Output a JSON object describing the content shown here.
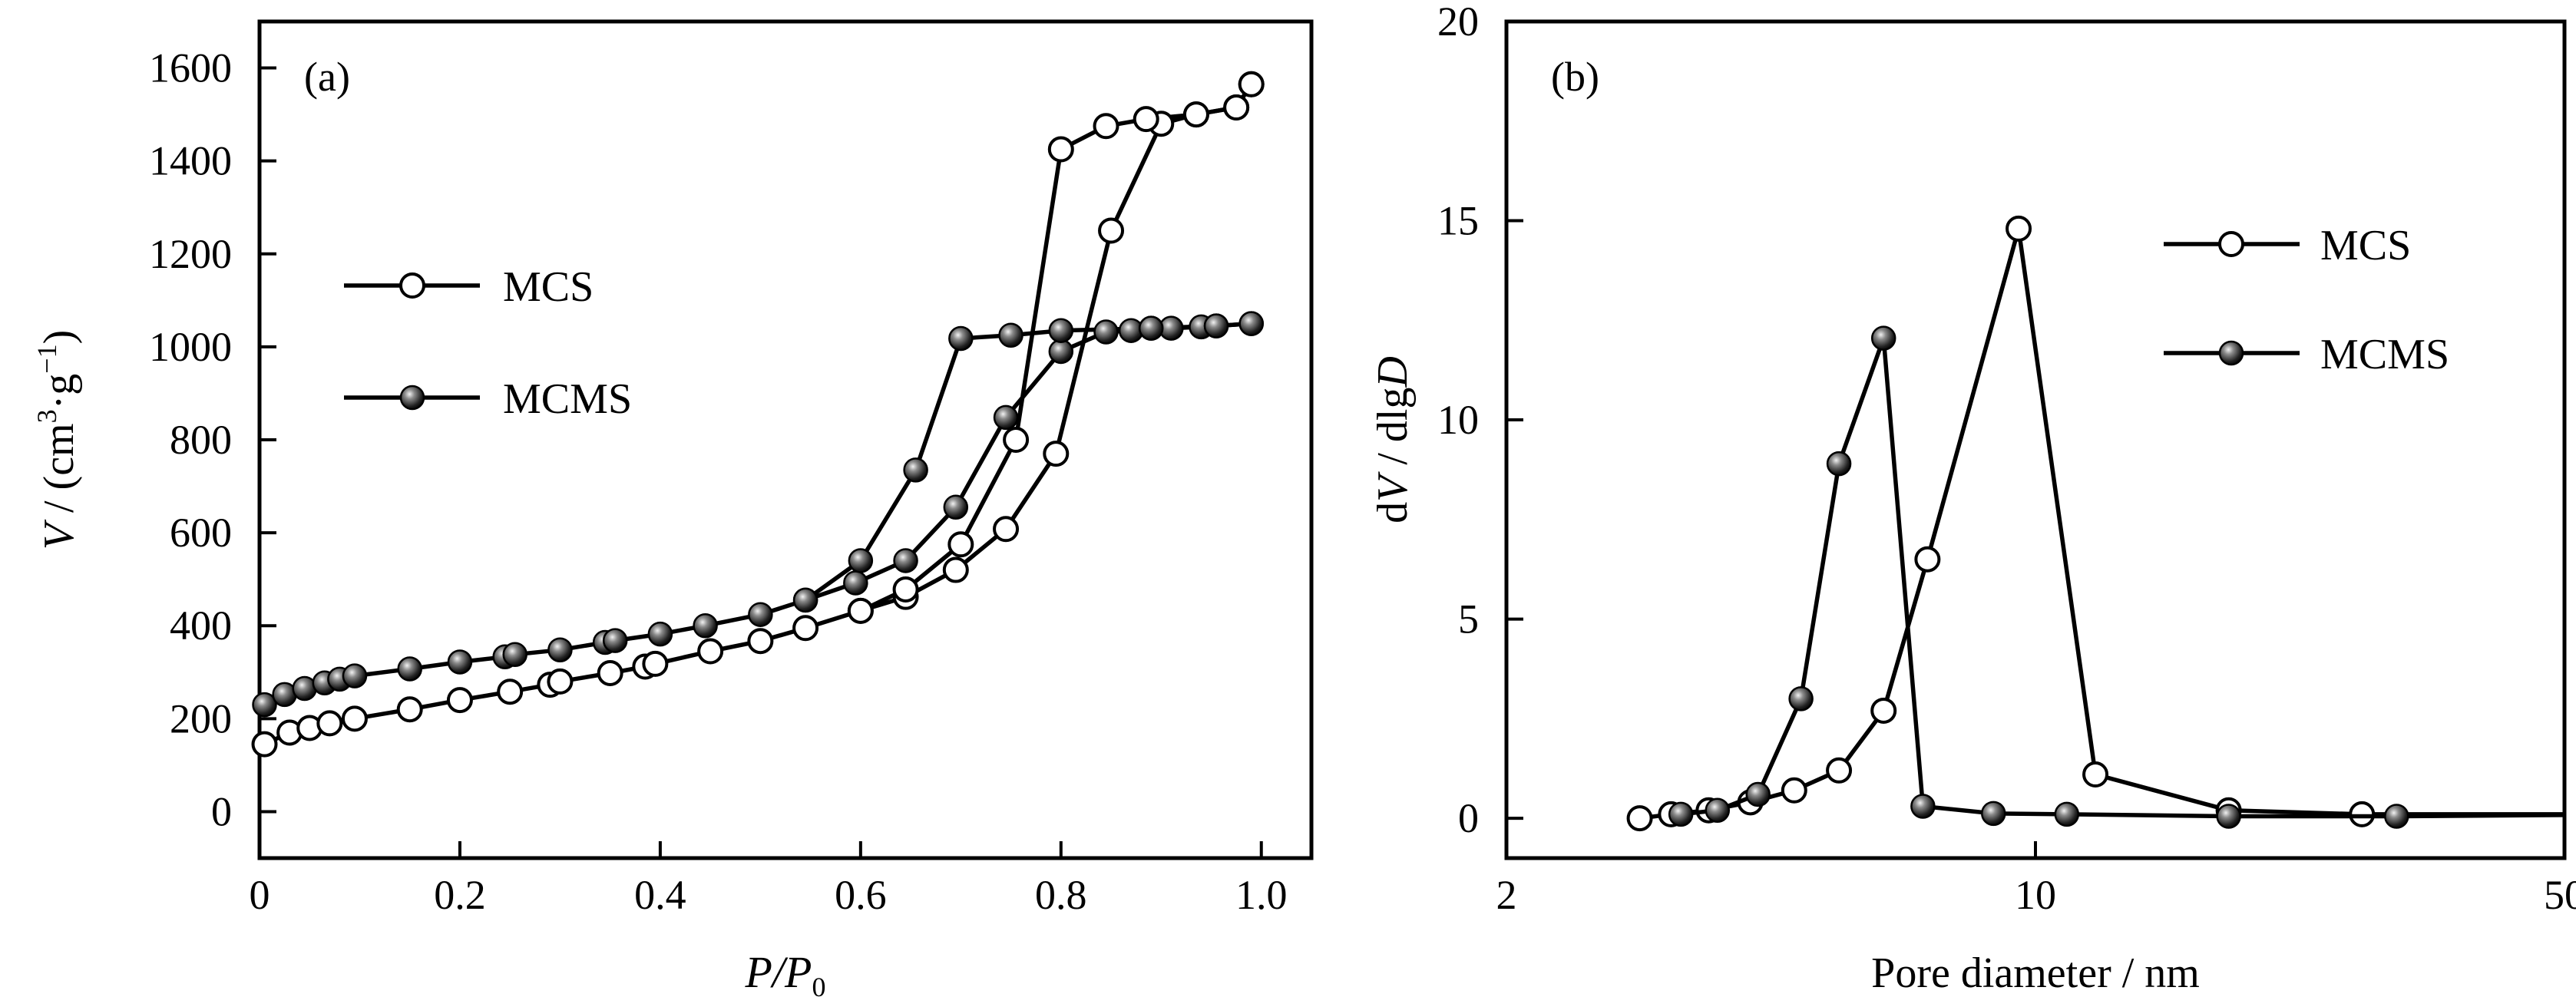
{
  "chart_data": [
    {
      "panel_label": "(a)",
      "type": "line",
      "xlabel_main": "P/P",
      "xlabel_sub": "0",
      "ylabel": "V / (cm³·g⁻¹)",
      "ylabel_parts": {
        "v": "V",
        "pre": " / (cm",
        "sup3": "3",
        "mid": "·g",
        "supm1": "−1",
        "post": ")"
      },
      "xlim": [
        0,
        1.05
      ],
      "ylim": [
        -100,
        1700
      ],
      "x_ticks": [
        "0",
        "0.2",
        "0.4",
        "0.6",
        "0.8",
        "1.0"
      ],
      "x_tick_values": [
        0,
        0.2,
        0.4,
        0.6,
        0.8,
        1.0
      ],
      "y_ticks": [
        "0",
        "200",
        "400",
        "600",
        "800",
        "1000",
        "1200",
        "1400",
        "1600"
      ],
      "y_tick_values": [
        0,
        200,
        400,
        600,
        800,
        1000,
        1200,
        1400,
        1600
      ],
      "legend": [
        {
          "name": "MCS",
          "marker": "open-circle"
        },
        {
          "name": "MCMS",
          "marker": "filled-sphere"
        }
      ],
      "legend_position": "middle-left",
      "series": [
        {
          "name": "MCS",
          "marker": "open-circle",
          "adsorption": [
            [
              0.005,
              145
            ],
            [
              0.03,
              170
            ],
            [
              0.05,
              180
            ],
            [
              0.07,
              190
            ],
            [
              0.095,
              200
            ],
            [
              0.15,
              220
            ],
            [
              0.2,
              240
            ],
            [
              0.25,
              258
            ],
            [
              0.29,
              273
            ],
            [
              0.3,
              280
            ],
            [
              0.35,
              298
            ],
            [
              0.385,
              312
            ],
            [
              0.395,
              318
            ],
            [
              0.45,
              345
            ],
            [
              0.5,
              367
            ],
            [
              0.545,
              395
            ],
            [
              0.6,
              432
            ],
            [
              0.645,
              462
            ],
            [
              0.695,
              520
            ],
            [
              0.745,
              608
            ],
            [
              0.795,
              770
            ],
            [
              0.85,
              1250
            ],
            [
              0.9,
              1480
            ],
            [
              0.935,
              1500
            ],
            [
              0.975,
              1515
            ],
            [
              0.99,
              1565
            ]
          ],
          "desorption": [
            [
              0.99,
              1565
            ],
            [
              0.975,
              1515
            ],
            [
              0.935,
              1500
            ],
            [
              0.885,
              1490
            ],
            [
              0.845,
              1475
            ],
            [
              0.8,
              1425
            ],
            [
              0.755,
              800
            ],
            [
              0.7,
              575
            ],
            [
              0.645,
              478
            ],
            [
              0.6,
              432
            ]
          ]
        },
        {
          "name": "MCMS",
          "marker": "filled-sphere",
          "adsorption": [
            [
              0.005,
              230
            ],
            [
              0.025,
              252
            ],
            [
              0.045,
              265
            ],
            [
              0.065,
              277
            ],
            [
              0.08,
              285
            ],
            [
              0.095,
              292
            ],
            [
              0.15,
              307
            ],
            [
              0.2,
              322
            ],
            [
              0.245,
              333
            ],
            [
              0.255,
              338
            ],
            [
              0.3,
              348
            ],
            [
              0.345,
              364
            ],
            [
              0.355,
              368
            ],
            [
              0.4,
              382
            ],
            [
              0.445,
              400
            ],
            [
              0.5,
              424
            ],
            [
              0.545,
              455
            ],
            [
              0.595,
              492
            ],
            [
              0.645,
              540
            ],
            [
              0.695,
              655
            ],
            [
              0.745,
              848
            ],
            [
              0.8,
              990
            ],
            [
              0.845,
              1032
            ],
            [
              0.87,
              1035
            ],
            [
              0.89,
              1040
            ],
            [
              0.91,
              1040
            ],
            [
              0.94,
              1043
            ],
            [
              0.955,
              1045
            ],
            [
              0.99,
              1050
            ]
          ],
          "desorption": [
            [
              0.99,
              1050
            ],
            [
              0.955,
              1045
            ],
            [
              0.89,
              1040
            ],
            [
              0.8,
              1035
            ],
            [
              0.75,
              1025
            ],
            [
              0.7,
              1018
            ],
            [
              0.655,
              735
            ],
            [
              0.6,
              540
            ],
            [
              0.545,
              455
            ]
          ]
        }
      ]
    },
    {
      "panel_label": "(b)",
      "type": "line",
      "xlabel": "Pore diameter / nm",
      "ylabel": "dV / dlgD",
      "ylabel_parts": {
        "d1": "d",
        "v": "V",
        "mid": " / dlg",
        "dd": "D"
      },
      "x_scale": "log",
      "xlim": [
        2,
        50
      ],
      "ylim": [
        -1,
        20
      ],
      "x_ticks": [
        "2",
        "10",
        "50"
      ],
      "x_tick_values": [
        2,
        10,
        50
      ],
      "y_ticks": [
        "0",
        "5",
        "10",
        "15",
        "20"
      ],
      "y_tick_values": [
        0,
        5,
        10,
        15,
        20
      ],
      "legend": [
        {
          "name": "MCS",
          "marker": "open-circle"
        },
        {
          "name": "MCMS",
          "marker": "filled-sphere"
        }
      ],
      "legend_position": "right",
      "series": [
        {
          "name": "MCS",
          "marker": "open-circle",
          "points": [
            [
              3.0,
              0.0
            ],
            [
              3.3,
              0.1
            ],
            [
              3.7,
              0.2
            ],
            [
              4.2,
              0.4
            ],
            [
              4.8,
              0.7
            ],
            [
              5.5,
              1.2
            ],
            [
              6.3,
              2.7
            ],
            [
              7.2,
              6.5
            ],
            [
              9.5,
              14.8
            ],
            [
              12.0,
              1.1
            ],
            [
              18.0,
              0.2
            ],
            [
              27.0,
              0.1
            ],
            [
              50.0,
              0.1
            ]
          ]
        },
        {
          "name": "MCMS",
          "marker": "filled-sphere",
          "points": [
            [
              3.4,
              0.1
            ],
            [
              3.8,
              0.2
            ],
            [
              4.3,
              0.6
            ],
            [
              4.9,
              3.0
            ],
            [
              5.5,
              8.9
            ],
            [
              6.3,
              12.05
            ],
            [
              7.1,
              0.3
            ],
            [
              8.8,
              0.12
            ],
            [
              11.0,
              0.1
            ],
            [
              18.0,
              0.05
            ],
            [
              30.0,
              0.05
            ],
            [
              50.0,
              0.08
            ]
          ]
        }
      ]
    }
  ]
}
